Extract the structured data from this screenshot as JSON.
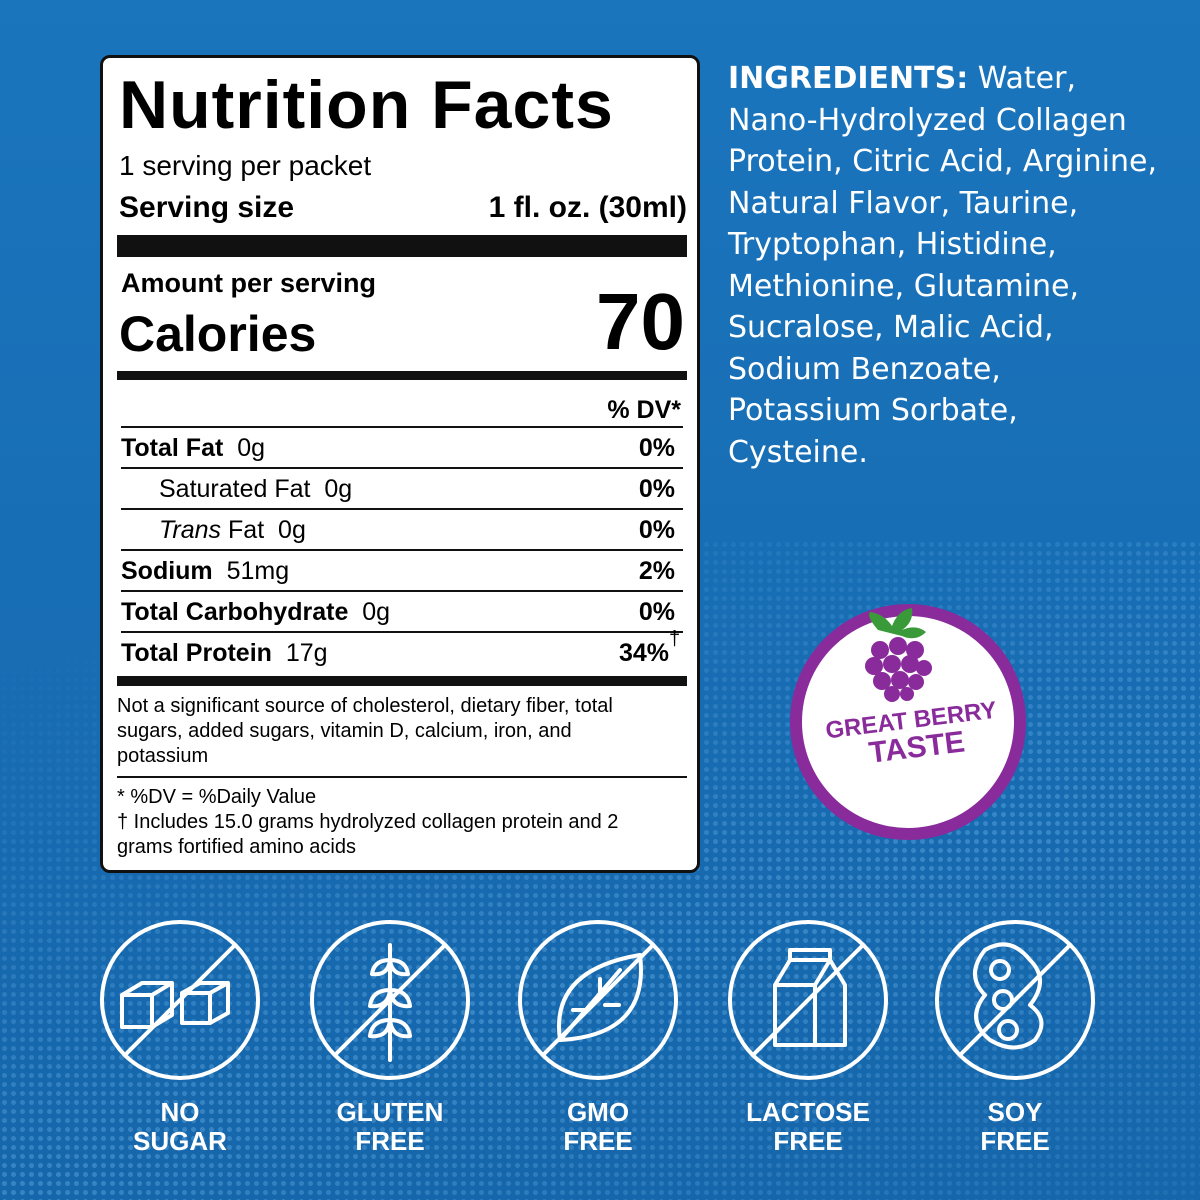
{
  "nutrition": {
    "title": "Nutrition Facts",
    "servings": "1 serving per packet",
    "serving_size_label": "Serving size",
    "serving_size_value": "1 fl. oz. (30ml)",
    "amount_label": "Amount per serving",
    "calories_label": "Calories",
    "calories_value": "70",
    "dv_header": "% DV*",
    "rows": [
      {
        "name": "Total Fat",
        "amount": "0g",
        "dv": "0%"
      },
      {
        "name": "Saturated Fat",
        "amount": "0g",
        "dv": "0%"
      },
      {
        "name_italic": "Trans",
        "name": "Fat",
        "amount": "0g",
        "dv": "0%"
      },
      {
        "name": "Sodium",
        "amount": "51mg",
        "dv": "2%"
      },
      {
        "name": "Total Carbohydrate",
        "amount": "0g",
        "dv": "0%"
      },
      {
        "name": "Total Protein",
        "amount": "17g",
        "dv": "34%",
        "mark": "†"
      }
    ],
    "footnote": "Not a significant source of cholesterol, dietary fiber, total sugars, added sugars, vitamin D, calcium, iron, and potassium",
    "notes": [
      "* %DV = %Daily Value",
      "† Includes 15.0 grams hydrolyzed collagen protein and 2 grams fortified amino acids"
    ]
  },
  "ingredients": {
    "label": "INGREDIENTS:",
    "text": "Water, Nano-Hydrolyzed Collagen Protein, Citric Acid, Arginine, Natural Flavor, Taurine, Tryptophan, Histidine, Methionine, Glutamine, Sucralose, Malic Acid, Sodium Benzoate, Potassium Sorbate, Cysteine."
  },
  "badge": {
    "lines": [
      "GREAT BERRY",
      "TASTE"
    ]
  },
  "icons": [
    {
      "lines": [
        "NO",
        "SUGAR"
      ]
    },
    {
      "lines": [
        "GLUTEN",
        "FREE"
      ]
    },
    {
      "lines": [
        "GMO",
        "FREE"
      ]
    },
    {
      "lines": [
        "LACTOSE",
        "FREE"
      ]
    },
    {
      "lines": [
        "SOY",
        "FREE"
      ]
    }
  ]
}
